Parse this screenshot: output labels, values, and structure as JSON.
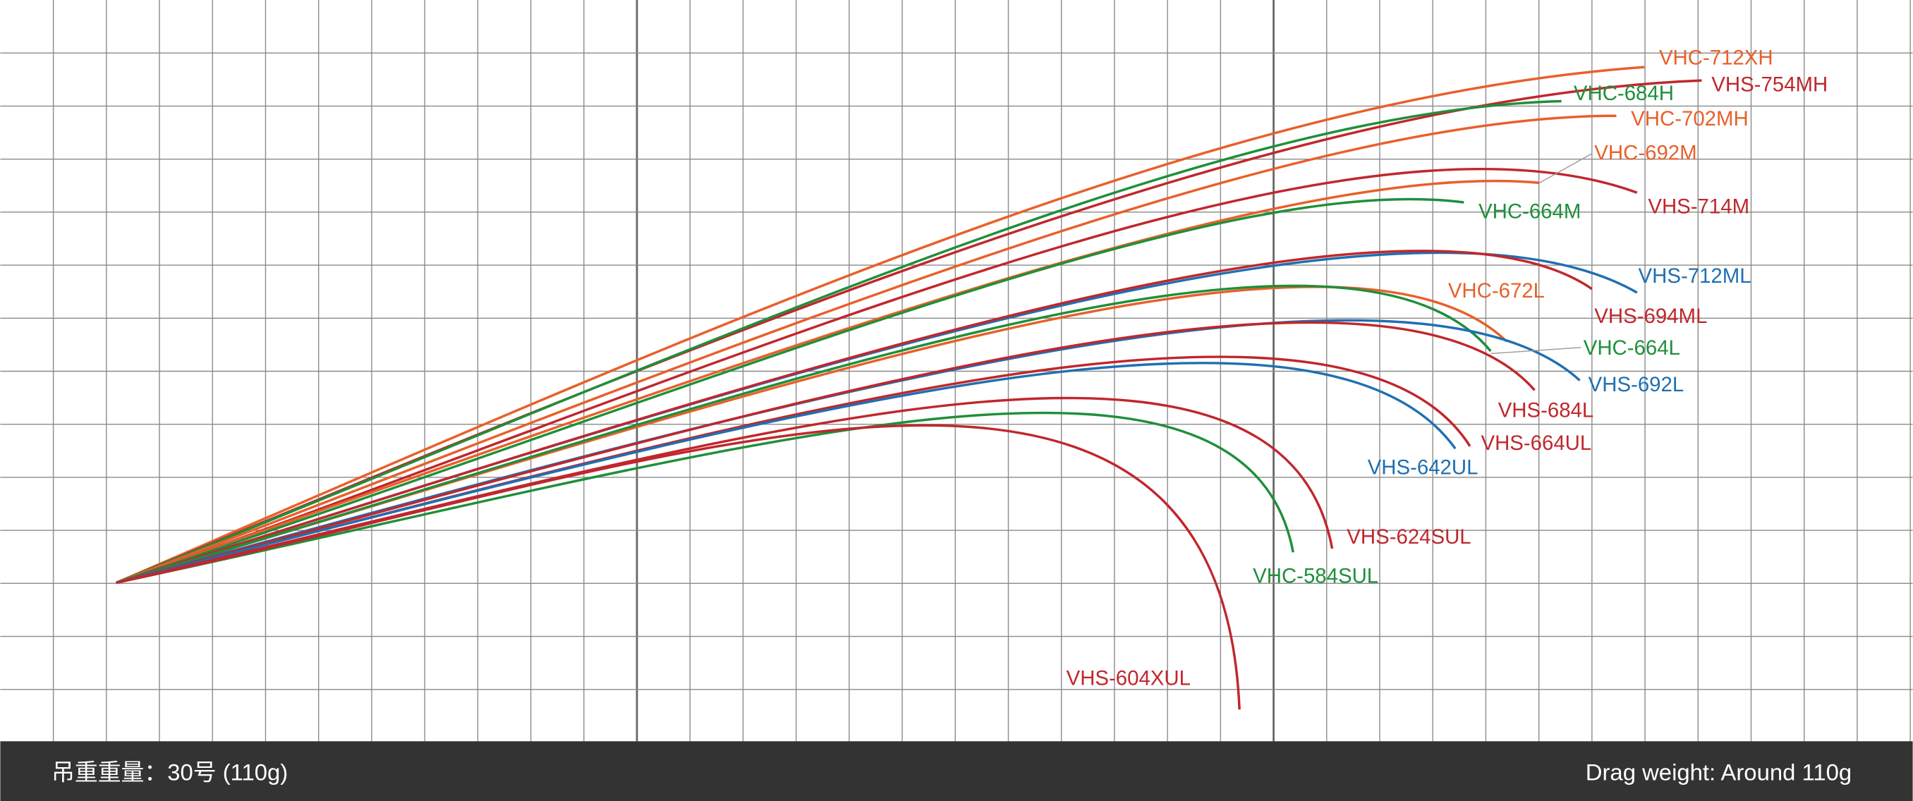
{
  "curves": [
    {
      "label": "VHC-712XH"
    },
    {
      "label": "VHS-754MH"
    },
    {
      "label": "VHC-684H"
    },
    {
      "label": "VHC-702MH"
    },
    {
      "label": "VHS-714M"
    },
    {
      "label": "VHC-692M"
    },
    {
      "label": "VHC-664M"
    },
    {
      "label": "VHS-712ML"
    },
    {
      "label": "VHS-694ML"
    },
    {
      "label": "VHC-672L"
    },
    {
      "label": "VHC-664L"
    },
    {
      "label": "VHS-692L"
    },
    {
      "label": "VHS-684L"
    },
    {
      "label": "VHS-664UL"
    },
    {
      "label": "VHS-642UL"
    },
    {
      "label": "VHS-624SUL"
    },
    {
      "label": "VHC-584SUL"
    },
    {
      "label": "VHS-604XUL"
    }
  ],
  "footer": {
    "left": "吊重重量：30号 (110g)",
    "right": "Drag weight: Around 110g"
  }
}
